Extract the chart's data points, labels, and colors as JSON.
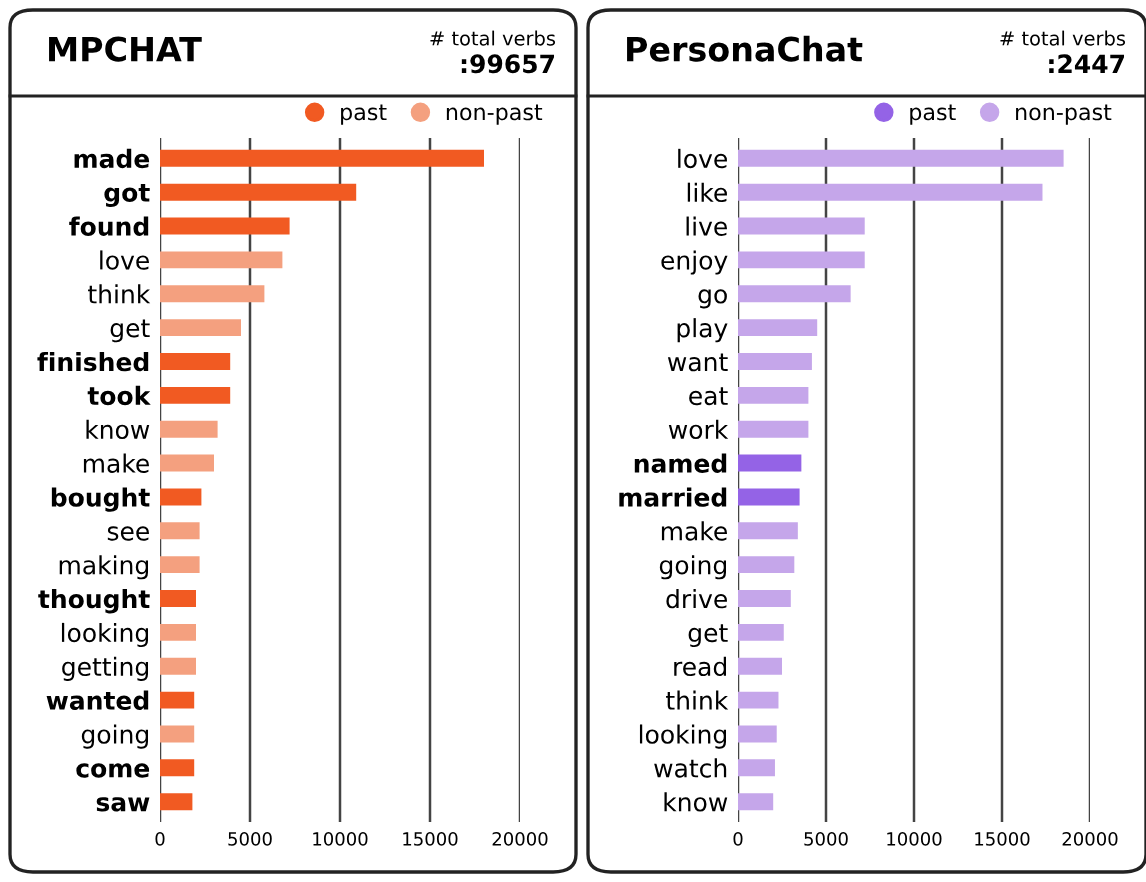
{
  "chart_data": [
    {
      "type": "bar",
      "orientation": "horizontal",
      "title": "MPCHAT",
      "annotations": [
        "# total verbs",
        ":99657"
      ],
      "categories": [
        "made",
        "got",
        "found",
        "love",
        "think",
        "get",
        "finished",
        "took",
        "know",
        "make",
        "bought",
        "see",
        "making",
        "thought",
        "looking",
        "getting",
        "wanted",
        "going",
        "come",
        "saw"
      ],
      "series": [
        {
          "name": "past",
          "color": "#f15a22",
          "values": [
            18000,
            10900,
            7200,
            null,
            null,
            null,
            3900,
            3900,
            null,
            null,
            2300,
            null,
            null,
            2000,
            null,
            null,
            1900,
            null,
            1900,
            1800
          ]
        },
        {
          "name": "non-past",
          "color": "#f4a07f",
          "values": [
            null,
            null,
            null,
            6800,
            5800,
            4500,
            null,
            null,
            3200,
            3000,
            null,
            2200,
            2200,
            null,
            2000,
            2000,
            null,
            1900,
            null,
            null
          ]
        }
      ],
      "xlim": [
        0,
        20000
      ],
      "xticks": [
        0,
        5000,
        10000,
        15000,
        20000
      ],
      "grid": "x",
      "legend": "top right"
    },
    {
      "type": "bar",
      "orientation": "horizontal",
      "title": "PersonaChat",
      "annotations": [
        "# total verbs",
        ":2447"
      ],
      "categories": [
        "love",
        "like",
        "live",
        "enjoy",
        "go",
        "play",
        "want",
        "eat",
        "work",
        "named",
        "married",
        "make",
        "going",
        "drive",
        "get",
        "read",
        "think",
        "looking",
        "watch",
        "know"
      ],
      "series": [
        {
          "name": "past",
          "color": "#9463e6",
          "values": [
            null,
            null,
            null,
            null,
            null,
            null,
            null,
            null,
            null,
            3600,
            3500,
            null,
            null,
            null,
            null,
            null,
            null,
            null,
            null,
            null
          ]
        },
        {
          "name": "non-past",
          "color": "#c5a6ea",
          "values": [
            18500,
            17300,
            7200,
            7200,
            6400,
            4500,
            4200,
            4000,
            4000,
            null,
            null,
            3400,
            3200,
            3000,
            2600,
            2500,
            2300,
            2200,
            2100,
            2000
          ]
        }
      ],
      "xlim": [
        0,
        20000
      ],
      "xticks": [
        0,
        5000,
        10000,
        15000,
        20000
      ],
      "grid": "x",
      "legend": "top right"
    }
  ]
}
